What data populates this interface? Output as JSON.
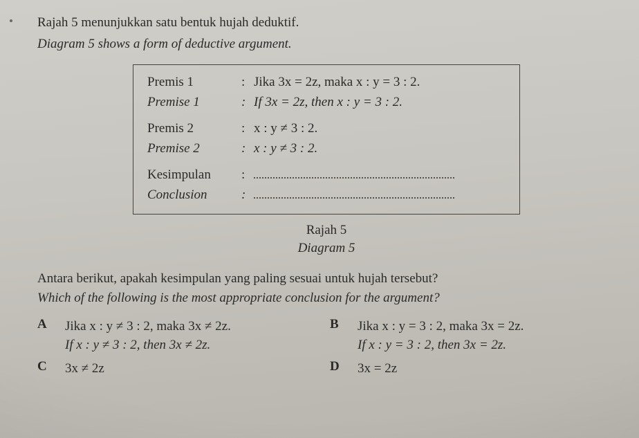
{
  "question": {
    "line_ms": "Rajah 5 menunjukkan satu bentuk hujah deduktif.",
    "line_en": "Diagram 5 shows a form of deductive argument."
  },
  "box": {
    "p1_label_ms": "Premis 1",
    "p1_label_en": "Premise 1",
    "p1_text_ms": "Jika 3x = 2z, maka x : y = 3 : 2.",
    "p1_text_en": "If 3x = 2z, then x : y = 3 : 2.",
    "p2_label_ms": "Premis 2",
    "p2_label_en": "Premise 2",
    "p2_text_ms": "x : y ≠ 3 : 2.",
    "p2_text_en": "x : y ≠ 3 : 2.",
    "c_label_ms": "Kesimpulan",
    "c_label_en": "Conclusion"
  },
  "caption": {
    "ms": "Rajah 5",
    "en": "Diagram 5"
  },
  "ask": {
    "ms": "Antara berikut, apakah kesimpulan yang paling sesuai untuk hujah tersebut?",
    "en": "Which of the following is the most appropriate conclusion for the argument?"
  },
  "choices": {
    "A_label": "A",
    "A_ms": "Jika x : y ≠ 3 : 2, maka 3x ≠ 2z.",
    "A_en": "If x : y ≠ 3 : 2, then 3x ≠ 2z.",
    "B_label": "B",
    "B_ms": "Jika x : y = 3 : 2, maka 3x = 2z.",
    "B_en": "If x : y = 3 : 2, then 3x = 2z.",
    "C_label": "C",
    "C_text": "3x ≠ 2z",
    "D_label": "D",
    "D_text": "3x = 2z"
  },
  "style": {
    "text_color": "#2a2a28",
    "border_color": "#474440",
    "bg_top": "#d0cec8",
    "bg_bottom": "#b8b5ae",
    "font_size_pt": 14
  }
}
